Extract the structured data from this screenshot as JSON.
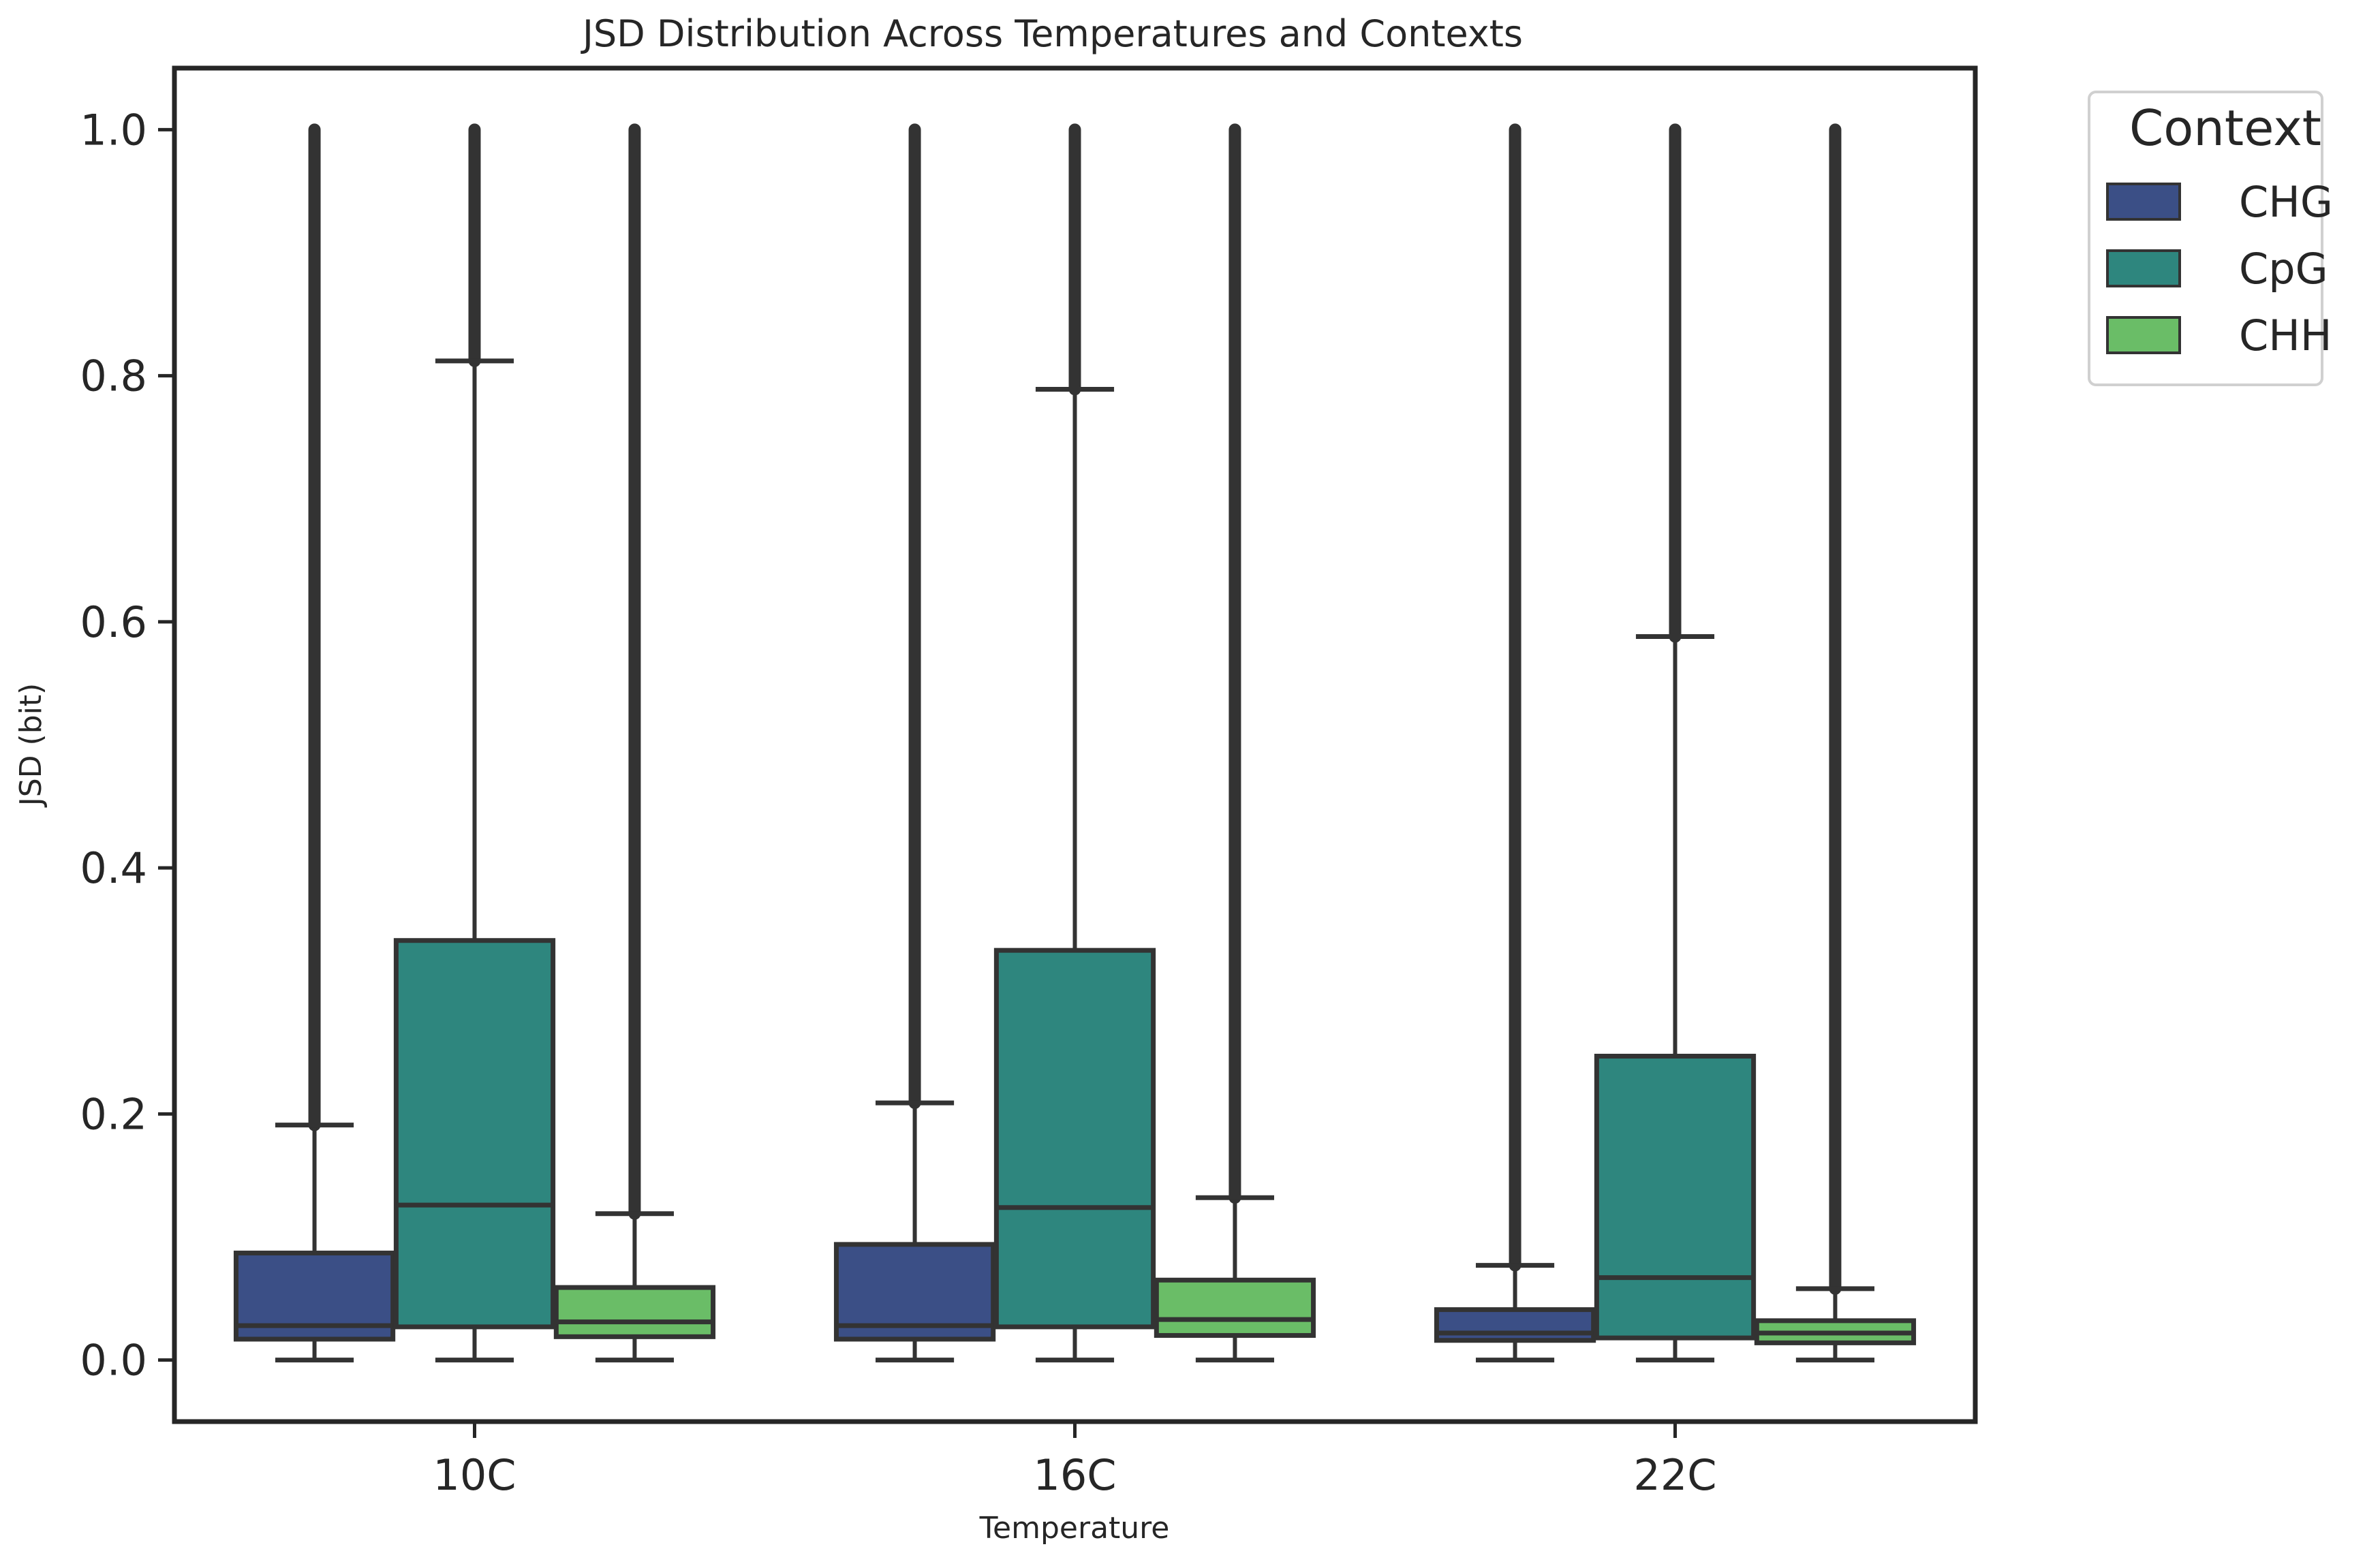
{
  "chart_data": {
    "type": "box",
    "title": "JSD Distribution Across Temperatures and Contexts",
    "xlabel": "Temperature",
    "ylabel": "JSD (bit)",
    "categories": [
      "10C",
      "16C",
      "22C"
    ],
    "ylim": [
      -0.05,
      1.05
    ],
    "yticks": [
      0.0,
      0.2,
      0.4,
      0.6,
      0.8,
      1.0
    ],
    "ytick_labels": [
      "0.0",
      "0.2",
      "0.4",
      "0.6",
      "0.8",
      "1.0"
    ],
    "grid": false,
    "legend": {
      "title": "Context",
      "position": "outside-top-right"
    },
    "series": [
      {
        "name": "CHG",
        "color": "#3b4f86",
        "boxes": [
          {
            "min": 0.0,
            "q1": 0.017,
            "median": 0.028,
            "q3": 0.087,
            "whisker_high": 0.191,
            "outliers_to": 1.0
          },
          {
            "min": 0.0,
            "q1": 0.017,
            "median": 0.028,
            "q3": 0.094,
            "whisker_high": 0.209,
            "outliers_to": 1.0
          },
          {
            "min": 0.0,
            "q1": 0.016,
            "median": 0.022,
            "q3": 0.041,
            "whisker_high": 0.077,
            "outliers_to": 1.0
          }
        ]
      },
      {
        "name": "CpG",
        "color": "#2e867e",
        "boxes": [
          {
            "min": 0.0,
            "q1": 0.027,
            "median": 0.126,
            "q3": 0.341,
            "whisker_high": 0.812,
            "outliers_to": 1.0
          },
          {
            "min": 0.0,
            "q1": 0.027,
            "median": 0.124,
            "q3": 0.333,
            "whisker_high": 0.789,
            "outliers_to": 1.0
          },
          {
            "min": 0.0,
            "q1": 0.018,
            "median": 0.067,
            "q3": 0.247,
            "whisker_high": 0.588,
            "outliers_to": 1.0
          }
        ]
      },
      {
        "name": "CHH",
        "color": "#6abd67",
        "boxes": [
          {
            "min": 0.0,
            "q1": 0.019,
            "median": 0.031,
            "q3": 0.059,
            "whisker_high": 0.119,
            "outliers_to": 1.0
          },
          {
            "min": 0.0,
            "q1": 0.02,
            "median": 0.033,
            "q3": 0.065,
            "whisker_high": 0.132,
            "outliers_to": 1.0
          },
          {
            "min": 0.0,
            "q1": 0.014,
            "median": 0.022,
            "q3": 0.032,
            "whisker_high": 0.058,
            "outliers_to": 1.0
          }
        ]
      }
    ]
  }
}
